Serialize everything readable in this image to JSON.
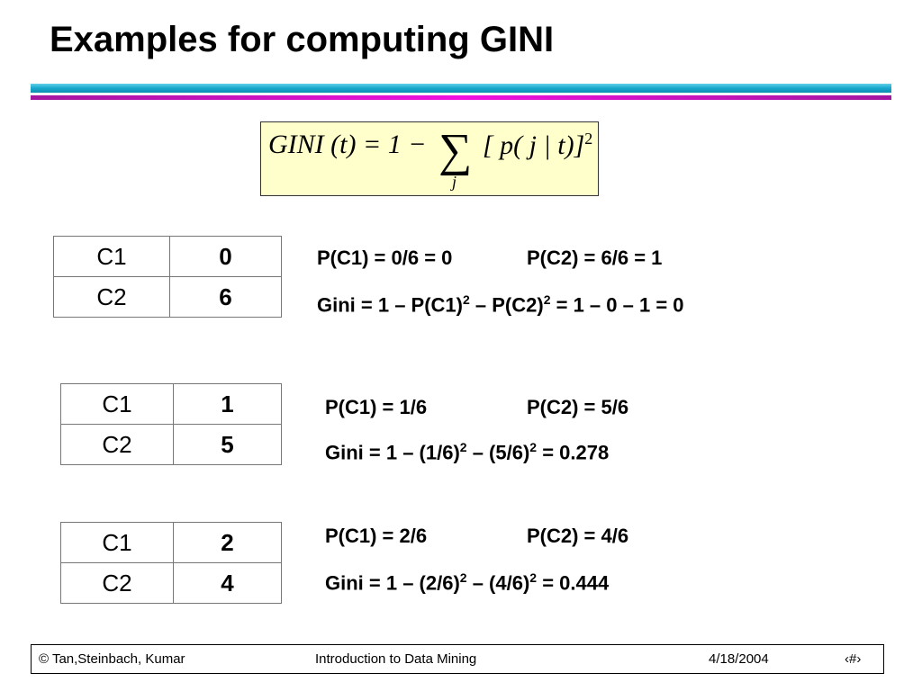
{
  "title": "Examples for computing GINI",
  "formula": {
    "lhs": "GINI (t) = 1 −",
    "sum": "∑",
    "sub": "j",
    "rhs": "[ p( j | t)]",
    "exp": "2"
  },
  "examples": [
    {
      "rows": [
        {
          "label": "C1",
          "value": "0"
        },
        {
          "label": "C2",
          "value": "6"
        }
      ],
      "p1": "P(C1) = 0/6 = 0",
      "p2": "P(C2) = 6/6 = 1",
      "gini_parts": [
        "Gini = 1 – P(C1)",
        "2",
        " – P(C2)",
        "2",
        " = 1 – 0 – 1 = 0"
      ]
    },
    {
      "rows": [
        {
          "label": "C1",
          "value": "1"
        },
        {
          "label": "C2",
          "value": "5"
        }
      ],
      "p1": "P(C1) = 1/6",
      "p2": "P(C2) = 5/6",
      "gini_parts": [
        "Gini = 1 – (1/6)",
        "2",
        " – (5/6)",
        "2",
        " = 0.278"
      ]
    },
    {
      "rows": [
        {
          "label": "C1",
          "value": "2"
        },
        {
          "label": "C2",
          "value": "4"
        }
      ],
      "p1": "P(C1) = 2/6",
      "p2": "P(C2) = 4/6",
      "gini_parts": [
        "Gini = 1 – (2/6)",
        "2",
        " – (4/6)",
        "2",
        " = 0.444"
      ]
    }
  ],
  "footer": {
    "authors": "© Tan,Steinbach, Kumar",
    "course": "Introduction to Data Mining",
    "date": "4/18/2004",
    "page": "‹#›"
  },
  "colors": {
    "top_bar": "#17a7cc",
    "second_bar": "#e010d8",
    "formula_bg": "#ffffcc"
  }
}
